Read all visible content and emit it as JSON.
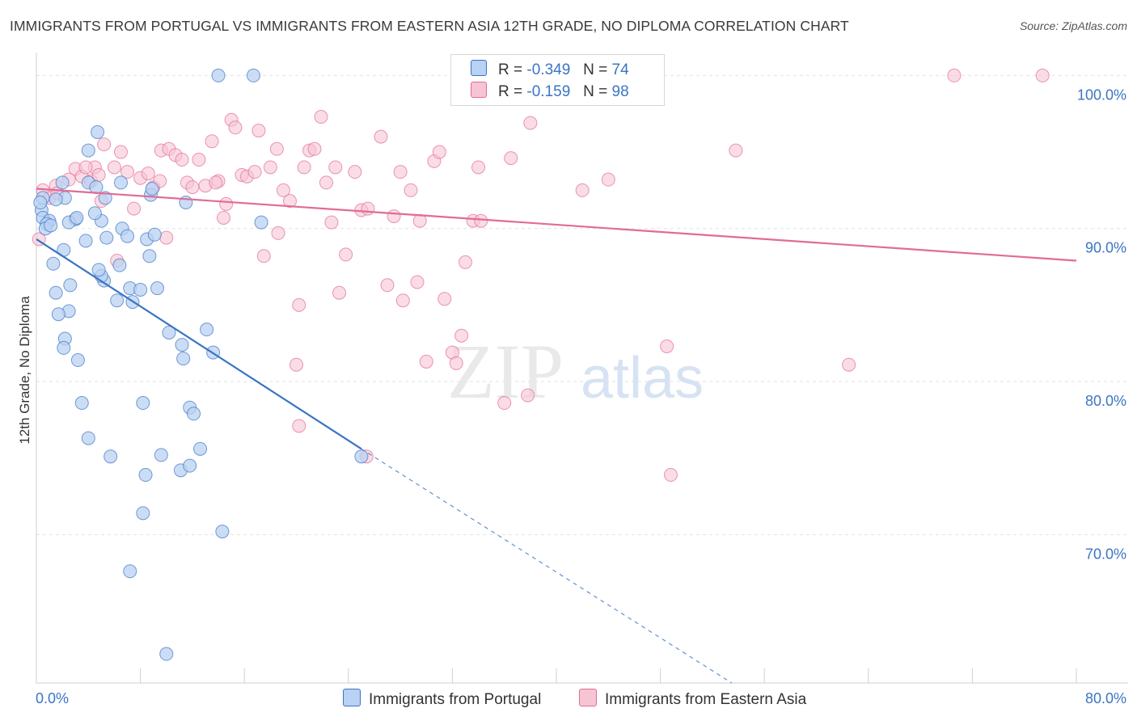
{
  "header": {
    "title": "IMMIGRANTS FROM PORTUGAL VS IMMIGRANTS FROM EASTERN ASIA 12TH GRADE, NO DIPLOMA CORRELATION CHART",
    "source": "Source: ZipAtlas.com"
  },
  "legend": {
    "rows": [
      {
        "r_label": "R =",
        "r_value": "-0.349",
        "n_label": "N =",
        "n_value": "74"
      },
      {
        "r_label": "R =",
        "r_value": "-0.159",
        "n_label": "N =",
        "n_value": "98"
      }
    ]
  },
  "watermark": {
    "zip": "ZIP",
    "atlas": "atlas"
  },
  "colors": {
    "blue": "#3b74c4",
    "blue_fill": "#b9d1f2",
    "pink": "#e26b96",
    "pink_fill": "#f7c4d3",
    "grid": "#e2e2e2",
    "tick_label": "#3b74c4"
  },
  "chart_data": {
    "type": "scatter",
    "title": "IMMIGRANTS FROM PORTUGAL VS IMMIGRANTS FROM EASTERN ASIA 12TH GRADE, NO DIPLOMA CORRELATION CHART",
    "xlabel": "",
    "ylabel": "12th Grade, No Diploma",
    "xlim": [
      0,
      80
    ],
    "ylim": [
      60.3,
      101.5
    ],
    "x_tick_labels": [
      "0.0%",
      "80.0%"
    ],
    "y_ticks": [
      70,
      80,
      90,
      100
    ],
    "y_tick_labels": [
      "70.0%",
      "80.0%",
      "90.0%",
      "100.0%"
    ],
    "grid": "horizontal dashed",
    "legend_position": "top-center",
    "series": [
      {
        "name": "Immigrants from Portugal",
        "color": "#3b74c4",
        "r": -0.349,
        "n": 74,
        "trend": {
          "x": [
            0,
            25
          ],
          "y": [
            89.3,
            75.6
          ]
        },
        "trend_extrapolated": {
          "x": [
            25,
            53.5
          ],
          "y": [
            75.6,
            60.3
          ]
        },
        "points": [
          [
            14,
            100
          ],
          [
            16.7,
            100
          ],
          [
            4.7,
            96.3
          ],
          [
            4,
            95.1
          ],
          [
            0.5,
            92
          ],
          [
            2,
            93
          ],
          [
            2.2,
            92
          ],
          [
            4,
            93
          ],
          [
            6.5,
            93
          ],
          [
            5.3,
            92
          ],
          [
            8.8,
            92.2
          ],
          [
            0.4,
            91.2
          ],
          [
            0.5,
            90.7
          ],
          [
            1,
            90.5
          ],
          [
            0.8,
            90.3
          ],
          [
            0.7,
            90
          ],
          [
            3,
            90.6
          ],
          [
            5,
            90.5
          ],
          [
            2.5,
            90.4
          ],
          [
            4.5,
            91
          ],
          [
            3.8,
            89.2
          ],
          [
            6.6,
            90
          ],
          [
            7,
            89.5
          ],
          [
            8.5,
            89.3
          ],
          [
            11.5,
            91.7
          ],
          [
            8.7,
            88.2
          ],
          [
            2.1,
            88.6
          ],
          [
            1.3,
            87.7
          ],
          [
            5.2,
            86.6
          ],
          [
            5,
            86.9
          ],
          [
            1.5,
            85.8
          ],
          [
            2.6,
            86.3
          ],
          [
            4.8,
            87.3
          ],
          [
            6.4,
            87.6
          ],
          [
            7.2,
            86.1
          ],
          [
            8,
            86
          ],
          [
            9.3,
            86.1
          ],
          [
            6.2,
            85.3
          ],
          [
            7.4,
            85.2
          ],
          [
            2.5,
            84.6
          ],
          [
            1.7,
            84.4
          ],
          [
            2.2,
            82.8
          ],
          [
            2.1,
            82.2
          ],
          [
            3.2,
            81.4
          ],
          [
            3.5,
            78.6
          ],
          [
            4,
            76.3
          ],
          [
            5.7,
            75.1
          ],
          [
            8.2,
            78.6
          ],
          [
            10.2,
            83.2
          ],
          [
            11.2,
            82.4
          ],
          [
            11.3,
            81.5
          ],
          [
            13.1,
            83.4
          ],
          [
            13.6,
            81.9
          ],
          [
            11.8,
            78.3
          ],
          [
            12.1,
            77.9
          ],
          [
            12.6,
            75.6
          ],
          [
            9.6,
            75.2
          ],
          [
            11.1,
            74.2
          ],
          [
            11.8,
            74.5
          ],
          [
            8.4,
            73.9
          ],
          [
            8.2,
            71.4
          ],
          [
            14.3,
            70.2
          ],
          [
            7.2,
            67.6
          ],
          [
            10,
            62.2
          ],
          [
            5.4,
            89.4
          ],
          [
            3.1,
            90.7
          ],
          [
            1.1,
            90.2
          ],
          [
            0.3,
            91.7
          ],
          [
            8.9,
            92.6
          ],
          [
            25,
            75.1
          ],
          [
            17.3,
            90.4
          ],
          [
            1.5,
            91.9
          ],
          [
            9.1,
            89.6
          ],
          [
            4.6,
            92.7
          ]
        ]
      },
      {
        "name": "Immigrants from Eastern Asia",
        "color": "#e26b96",
        "r": -0.159,
        "n": 98,
        "trend": {
          "x": [
            0,
            80
          ],
          "y": [
            92.6,
            87.9
          ]
        },
        "points": [
          [
            0.2,
            89.3
          ],
          [
            0.5,
            92.5
          ],
          [
            1,
            92
          ],
          [
            1.5,
            92.8
          ],
          [
            2.5,
            93.2
          ],
          [
            3,
            93.9
          ],
          [
            3.5,
            93.4
          ],
          [
            4.2,
            93.1
          ],
          [
            4.5,
            94
          ],
          [
            4.8,
            93.5
          ],
          [
            5,
            91.8
          ],
          [
            5.2,
            95.5
          ],
          [
            6,
            94
          ],
          [
            6.5,
            95
          ],
          [
            7,
            93.7
          ],
          [
            7.5,
            91.3
          ],
          [
            8,
            93.3
          ],
          [
            8.6,
            93.6
          ],
          [
            9,
            92.7
          ],
          [
            9.5,
            93.1
          ],
          [
            9.6,
            95.1
          ],
          [
            10.2,
            95.2
          ],
          [
            10.7,
            94.8
          ],
          [
            11.2,
            94.5
          ],
          [
            11.6,
            93
          ],
          [
            12,
            92.7
          ],
          [
            12.5,
            94.5
          ],
          [
            13,
            92.8
          ],
          [
            13.5,
            95.7
          ],
          [
            14,
            93.1
          ],
          [
            14.4,
            90.7
          ],
          [
            14.6,
            91.6
          ],
          [
            15,
            97.1
          ],
          [
            15.3,
            96.6
          ],
          [
            15.8,
            93.5
          ],
          [
            16.2,
            93.4
          ],
          [
            16.8,
            93.7
          ],
          [
            17.1,
            96.4
          ],
          [
            17.5,
            88.2
          ],
          [
            18,
            94
          ],
          [
            18.5,
            95.2
          ],
          [
            18.6,
            89.7
          ],
          [
            19,
            92.5
          ],
          [
            19.5,
            91.8
          ],
          [
            20.2,
            85
          ],
          [
            20.6,
            94
          ],
          [
            21,
            95.1
          ],
          [
            21.4,
            95.2
          ],
          [
            21.9,
            97.3
          ],
          [
            22.3,
            93
          ],
          [
            22.7,
            90.4
          ],
          [
            23,
            94
          ],
          [
            23.3,
            85.8
          ],
          [
            23.8,
            88.3
          ],
          [
            24.5,
            93.7
          ],
          [
            25,
            91.2
          ],
          [
            25.5,
            91.3
          ],
          [
            26.5,
            96
          ],
          [
            27,
            86.3
          ],
          [
            27.5,
            90.8
          ],
          [
            28,
            93.7
          ],
          [
            28.2,
            85.3
          ],
          [
            28.8,
            92.5
          ],
          [
            29.3,
            86.5
          ],
          [
            29.5,
            90.5
          ],
          [
            30,
            81.3
          ],
          [
            30.6,
            94.4
          ],
          [
            31,
            95
          ],
          [
            31.4,
            85.4
          ],
          [
            32,
            81.9
          ],
          [
            32.3,
            81.2
          ],
          [
            32.7,
            83
          ],
          [
            33,
            87.8
          ],
          [
            33.6,
            90.5
          ],
          [
            34.2,
            90.5
          ],
          [
            36,
            78.6
          ],
          [
            36.5,
            94.6
          ],
          [
            37,
            99.8
          ],
          [
            37.8,
            79.1
          ],
          [
            38,
            96.9
          ],
          [
            42,
            92.5
          ],
          [
            43,
            100
          ],
          [
            44,
            93.2
          ],
          [
            48.8,
            73.9
          ],
          [
            48.5,
            82.3
          ],
          [
            53.8,
            95.1
          ],
          [
            62.5,
            81.1
          ],
          [
            70.6,
            100
          ],
          [
            77.4,
            100
          ],
          [
            20,
            81.1
          ],
          [
            25.4,
            75.1
          ],
          [
            20.2,
            77.1
          ],
          [
            34,
            94
          ],
          [
            3.8,
            94
          ],
          [
            13.8,
            93
          ],
          [
            1.6,
            92.3
          ],
          [
            6.2,
            87.9
          ],
          [
            10,
            89.4
          ]
        ]
      }
    ]
  },
  "bottom_legend": [
    {
      "label": "Immigrants from Portugal"
    },
    {
      "label": "Immigrants from Eastern Asia"
    }
  ]
}
